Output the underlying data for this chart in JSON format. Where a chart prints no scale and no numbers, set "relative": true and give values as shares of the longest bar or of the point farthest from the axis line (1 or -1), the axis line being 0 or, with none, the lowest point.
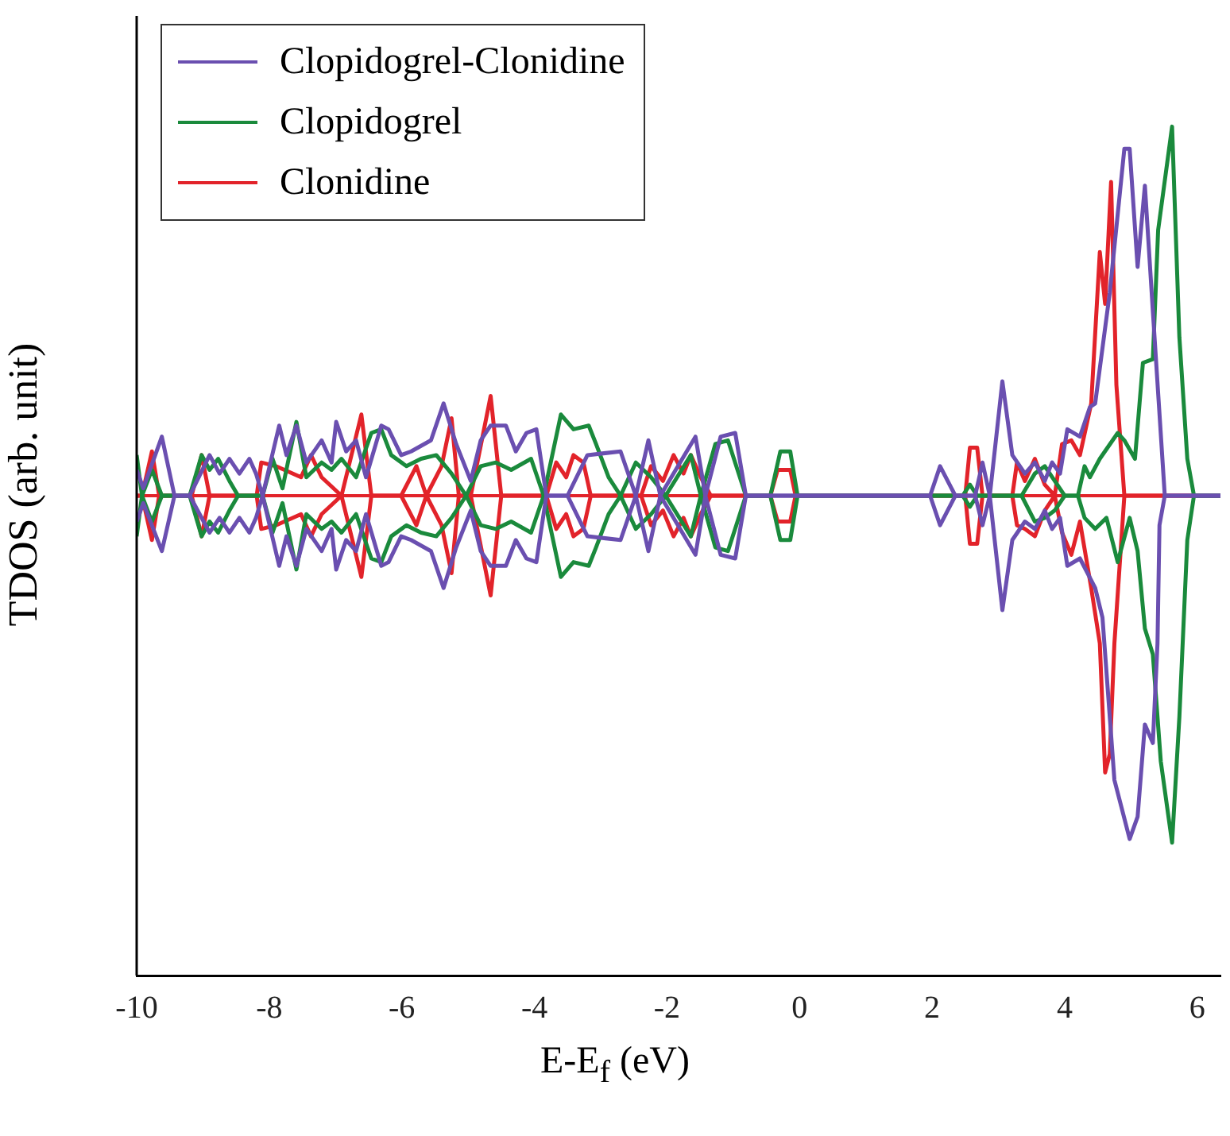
{
  "chart_data": {
    "type": "line",
    "xlabel": "E-E$_{f}$ (eV)",
    "ylabel": "TDOS (arb. unit)",
    "relative": true,
    "xlim": [
      -10,
      6.35
    ],
    "xticks": [
      -10,
      -8,
      -6,
      -4,
      -2,
      0,
      2,
      4,
      6
    ],
    "grid": false,
    "ref_lines": [
      {
        "axis": "y",
        "value": 0,
        "color": "#e2232a"
      }
    ],
    "legend": "top left",
    "marker": "none",
    "line_style": "solid",
    "series": [
      {
        "name": "Clopidogrel-Clonidine",
        "color": "#6a4fb0",
        "x": [
          -10,
          -9.9,
          -9.62,
          -9.43,
          -9.2,
          -8.9,
          -8.75,
          -8.6,
          -8.45,
          -8.3,
          -8.2,
          -8.1,
          -7.85,
          -7.74,
          -7.59,
          -7.44,
          -7.21,
          -7.06,
          -6.99,
          -6.84,
          -6.69,
          -6.54,
          -6.31,
          -6.2,
          -6.01,
          -5.86,
          -5.56,
          -5.37,
          -5.18,
          -4.96,
          -4.81,
          -4.66,
          -4.43,
          -4.28,
          -4.12,
          -3.97,
          -3.82,
          -3.5,
          -3.2,
          -2.7,
          -2.47,
          -2.28,
          -2.1,
          -1.57,
          -1.42,
          -1.19,
          -0.97,
          -0.81,
          1.97,
          2.12,
          2.35,
          2.65,
          2.76,
          2.87,
          3.06,
          3.21,
          3.4,
          3.55,
          3.7,
          3.81,
          3.93,
          4.04,
          4.23,
          4.38,
          4.46,
          4.68,
          4.9,
          4.98,
          5.1,
          5.21,
          5.33,
          5.51,
          6.35
        ],
        "values": [
          0.07,
          0.02,
          0.16,
          0,
          0,
          0.11,
          0.06,
          0.1,
          0.06,
          0.1,
          0.06,
          0,
          0.19,
          0.11,
          0.19,
          0.09,
          0.15,
          0.09,
          0.2,
          0.12,
          0.15,
          0.05,
          0.19,
          0.18,
          0.11,
          0.12,
          0.15,
          0.25,
          0.14,
          0.04,
          0.15,
          0.19,
          0.19,
          0.12,
          0.17,
          0.18,
          0,
          0,
          0.11,
          0.12,
          0,
          0.15,
          0,
          0.16,
          0,
          0.16,
          0.17,
          0,
          0,
          0.08,
          0,
          0,
          0.09,
          0,
          0.31,
          0.11,
          0.06,
          0.09,
          0.04,
          0.09,
          0.06,
          0.18,
          0.16,
          0.24,
          0.25,
          0.55,
          0.94,
          0.94,
          0.62,
          0.84,
          0.5,
          0,
          0
        ]
      },
      {
        "color": "#6a4fb0",
        "x": [
          -10,
          -9.9,
          -9.62,
          -9.43,
          -9.2,
          -8.9,
          -8.75,
          -8.6,
          -8.45,
          -8.3,
          -8.2,
          -8.1,
          -7.85,
          -7.74,
          -7.59,
          -7.44,
          -7.21,
          -7.06,
          -6.99,
          -6.84,
          -6.69,
          -6.54,
          -6.31,
          -6.2,
          -6.01,
          -5.86,
          -5.56,
          -5.37,
          -5.18,
          -4.96,
          -4.81,
          -4.66,
          -4.43,
          -4.28,
          -4.12,
          -3.97,
          -3.82,
          -3.5,
          -3.2,
          -2.7,
          -2.47,
          -2.28,
          -2.1,
          -1.57,
          -1.42,
          -1.19,
          -0.97,
          -0.81,
          1.97,
          2.12,
          2.35,
          2.65,
          2.76,
          2.87,
          3.06,
          3.21,
          3.4,
          3.55,
          3.7,
          3.81,
          3.93,
          4.04,
          4.23,
          4.46,
          4.57,
          4.75,
          4.98,
          5.1,
          5.21,
          5.33,
          5.4,
          5.43,
          5.51,
          6.35
        ],
        "values": [
          -0.07,
          -0.02,
          -0.15,
          0,
          0,
          -0.1,
          -0.06,
          -0.1,
          -0.06,
          -0.1,
          -0.06,
          0,
          -0.19,
          -0.11,
          -0.19,
          -0.09,
          -0.15,
          -0.09,
          -0.2,
          -0.12,
          -0.15,
          -0.05,
          -0.19,
          -0.18,
          -0.11,
          -0.12,
          -0.15,
          -0.25,
          -0.14,
          -0.04,
          -0.15,
          -0.19,
          -0.19,
          -0.12,
          -0.17,
          -0.18,
          0,
          0,
          -0.11,
          -0.12,
          0,
          -0.15,
          0,
          -0.16,
          0,
          -0.16,
          -0.17,
          0,
          0,
          -0.08,
          0,
          0,
          -0.08,
          0,
          -0.31,
          -0.12,
          -0.07,
          -0.09,
          -0.04,
          -0.09,
          -0.06,
          -0.19,
          -0.17,
          -0.25,
          -0.33,
          -0.77,
          -0.93,
          -0.87,
          -0.62,
          -0.67,
          -0.4,
          -0.08,
          0,
          0
        ]
      },
      {
        "name": "Clopidogrel",
        "color": "#1a8a3c",
        "x": [
          -10,
          -9.92,
          -9.77,
          -9.62,
          -9.2,
          -9.02,
          -8.9,
          -8.77,
          -8.6,
          -8.47,
          -8.1,
          -7.95,
          -7.8,
          -7.59,
          -7.44,
          -7.21,
          -7.06,
          -6.91,
          -6.69,
          -6.46,
          -6.31,
          -6.16,
          -5.93,
          -5.71,
          -5.48,
          -5.25,
          -5.03,
          -4.81,
          -4.58,
          -4.35,
          -4.05,
          -3.86,
          -3.6,
          -3.41,
          -3.18,
          -3.07,
          -2.88,
          -2.7,
          -2.47,
          -2.24,
          -2.02,
          -1.64,
          -1.49,
          -1.27,
          -1.08,
          -0.81,
          -0.44,
          -0.29,
          -0.14,
          -0.03,
          2.46,
          2.57,
          2.68,
          3.35,
          3.55,
          3.7,
          3.85,
          4.0,
          4.2,
          4.3,
          4.38,
          4.53,
          4.8,
          4.9,
          5.06,
          5.18,
          5.33,
          5.41,
          5.62,
          5.73,
          5.85,
          5.95,
          6.35
        ],
        "values": [
          0.11,
          0,
          0.07,
          0,
          0,
          0.11,
          0.07,
          0.1,
          0.04,
          0,
          0,
          0.1,
          0.02,
          0.2,
          0.05,
          0.09,
          0.07,
          0.1,
          0.05,
          0.17,
          0.18,
          0.11,
          0.08,
          0.1,
          0.11,
          0.06,
          0,
          0.08,
          0.09,
          0.07,
          0.1,
          0,
          0.22,
          0.18,
          0.19,
          0.14,
          0.05,
          0,
          0.09,
          0.05,
          0,
          0.11,
          0,
          0.14,
          0.15,
          0,
          0,
          0.12,
          0.12,
          0,
          0,
          0.03,
          0,
          0,
          0.06,
          0.08,
          0.04,
          0,
          0,
          0.08,
          0.05,
          0.1,
          0.17,
          0.15,
          0.1,
          0.36,
          0.37,
          0.72,
          1,
          0.43,
          0.1,
          0,
          0
        ]
      },
      {
        "color": "#1a8a3c",
        "x": [
          -10,
          -9.92,
          -9.77,
          -9.62,
          -9.2,
          -9.02,
          -8.9,
          -8.77,
          -8.6,
          -8.47,
          -8.1,
          -7.95,
          -7.8,
          -7.59,
          -7.44,
          -7.21,
          -7.06,
          -6.91,
          -6.69,
          -6.46,
          -6.31,
          -6.16,
          -5.93,
          -5.71,
          -5.48,
          -5.25,
          -5.03,
          -4.81,
          -4.58,
          -4.35,
          -4.05,
          -3.86,
          -3.6,
          -3.41,
          -3.18,
          -3.07,
          -2.88,
          -2.7,
          -2.47,
          -2.24,
          -2.02,
          -1.64,
          -1.49,
          -1.27,
          -1.08,
          -0.81,
          -0.44,
          -0.29,
          -0.14,
          -0.03,
          2.46,
          2.57,
          2.68,
          3.35,
          3.55,
          3.7,
          3.85,
          4.0,
          4.2,
          4.3,
          4.46,
          4.63,
          4.8,
          4.98,
          5.1,
          5.21,
          5.33,
          5.45,
          5.62,
          5.73,
          5.85,
          5.95,
          6.35
        ],
        "values": [
          -0.11,
          0,
          -0.07,
          0,
          0,
          -0.11,
          -0.07,
          -0.1,
          -0.04,
          0,
          0,
          -0.1,
          -0.02,
          -0.2,
          -0.05,
          -0.09,
          -0.07,
          -0.1,
          -0.05,
          -0.17,
          -0.18,
          -0.11,
          -0.08,
          -0.1,
          -0.11,
          -0.06,
          0,
          -0.08,
          -0.09,
          -0.07,
          -0.1,
          0,
          -0.22,
          -0.18,
          -0.19,
          -0.14,
          -0.05,
          0,
          -0.09,
          -0.05,
          0,
          -0.11,
          0,
          -0.14,
          -0.15,
          0,
          0,
          -0.12,
          -0.12,
          0,
          0,
          -0.03,
          0,
          0,
          -0.07,
          -0.06,
          -0.04,
          0,
          0,
          -0.06,
          -0.09,
          -0.06,
          -0.18,
          -0.06,
          -0.15,
          -0.36,
          -0.43,
          -0.72,
          -0.94,
          -0.6,
          -0.12,
          0,
          0
        ]
      },
      {
        "name": "Clonidine",
        "color": "#e2232a",
        "x": [
          -10,
          -9.92,
          -9.77,
          -9.66,
          -9.17,
          -9.02,
          -8.9,
          -8.19,
          -8.12,
          -7.9,
          -7.52,
          -7.37,
          -7.21,
          -6.91,
          -6.61,
          -6.46,
          -6.01,
          -5.78,
          -5.63,
          -5.4,
          -5.25,
          -5.14,
          -4.96,
          -4.66,
          -4.5,
          -3.82,
          -3.67,
          -3.52,
          -3.41,
          -3.26,
          -3.15,
          -2.39,
          -2.24,
          -2.06,
          -1.9,
          -1.75,
          -1.64,
          -1.49,
          -1.34,
          -0.44,
          -0.33,
          -0.14,
          -0.06,
          2.5,
          2.57,
          2.68,
          2.76,
          3.21,
          3.28,
          3.4,
          3.55,
          3.7,
          3.85,
          3.96,
          4.1,
          4.23,
          4.4,
          4.53,
          4.61,
          4.7,
          4.78,
          4.9,
          6.35
        ],
        "values": [
          0,
          0,
          0.12,
          0,
          0,
          0.11,
          0,
          0,
          0.09,
          0.08,
          0.05,
          0.11,
          0.05,
          0,
          0.22,
          0,
          0,
          0.08,
          0,
          0.08,
          0.21,
          0,
          0,
          0.27,
          0,
          0,
          0.09,
          0.05,
          0.11,
          0.09,
          0,
          0,
          0.08,
          0.04,
          0.11,
          0.06,
          0.11,
          0.05,
          0,
          0,
          0.07,
          0.07,
          0,
          0,
          0.13,
          0.13,
          0,
          0,
          0.09,
          0.04,
          0.1,
          0.03,
          0,
          0.14,
          0.15,
          0.11,
          0.25,
          0.66,
          0.52,
          0.85,
          0.3,
          0,
          0
        ]
      },
      {
        "color": "#e2232a",
        "x": [
          -10,
          -9.92,
          -9.77,
          -9.66,
          -9.17,
          -9.02,
          -8.9,
          -8.19,
          -8.12,
          -7.9,
          -7.52,
          -7.37,
          -7.21,
          -6.91,
          -6.61,
          -6.46,
          -6.01,
          -5.78,
          -5.63,
          -5.4,
          -5.25,
          -5.14,
          -4.96,
          -4.66,
          -4.5,
          -3.82,
          -3.67,
          -3.52,
          -3.41,
          -3.26,
          -3.15,
          -2.39,
          -2.24,
          -2.06,
          -1.9,
          -1.75,
          -1.64,
          -1.49,
          -1.34,
          -0.44,
          -0.33,
          -0.14,
          -0.06,
          2.5,
          2.57,
          2.68,
          2.76,
          3.21,
          3.28,
          3.4,
          3.55,
          3.7,
          3.85,
          3.96,
          4.1,
          4.23,
          4.4,
          4.53,
          4.61,
          4.68,
          4.75,
          4.9,
          6.35
        ],
        "values": [
          0,
          0,
          -0.12,
          0,
          0,
          -0.11,
          0,
          0,
          -0.09,
          -0.08,
          -0.05,
          -0.11,
          -0.05,
          0,
          -0.22,
          0,
          0,
          -0.08,
          0,
          -0.08,
          -0.21,
          0,
          0,
          -0.27,
          0,
          0,
          -0.09,
          -0.05,
          -0.11,
          -0.09,
          0,
          0,
          -0.08,
          -0.04,
          -0.11,
          -0.06,
          -0.11,
          -0.05,
          0,
          0,
          -0.07,
          -0.07,
          0,
          0,
          -0.13,
          -0.13,
          0,
          0,
          -0.08,
          -0.09,
          -0.11,
          -0.04,
          0,
          -0.1,
          -0.16,
          -0.07,
          -0.25,
          -0.4,
          -0.75,
          -0.7,
          -0.4,
          0,
          0
        ]
      }
    ]
  }
}
